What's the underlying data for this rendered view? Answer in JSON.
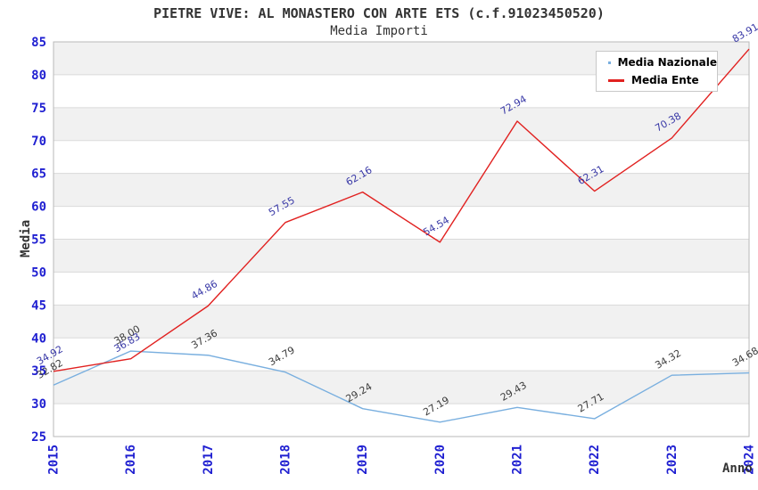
{
  "chart_data": {
    "type": "line",
    "title": "PIETRE VIVE: AL MONASTERO CON ARTE ETS (c.f.91023450520)",
    "subtitle": "Media Importi",
    "xlabel": "Anno",
    "ylabel": "Media",
    "x": [
      "2015",
      "2016",
      "2017",
      "2018",
      "2019",
      "2020",
      "2021",
      "2022",
      "2023",
      "2024"
    ],
    "ylim": [
      25,
      85
    ],
    "ytick_step": 5,
    "grid": true,
    "legend_position": "top-right",
    "band_colors": [
      "#f1f1f1",
      "#ffffff"
    ],
    "gridline_color": "#dadada",
    "plot_border_color": "#b9b9b9",
    "axis_tick_color": "#1f1fd1",
    "series": [
      {
        "name": "Media Nazionale",
        "color": "#79afdf",
        "label_color": "#3c3c3c",
        "values": [
          32.82,
          38.0,
          37.36,
          34.79,
          29.24,
          27.19,
          29.43,
          27.71,
          34.32,
          34.68
        ]
      },
      {
        "name": "Media Ente",
        "color": "#e12120",
        "label_color": "#3737a6",
        "values": [
          34.92,
          36.83,
          44.86,
          57.55,
          62.16,
          54.54,
          72.94,
          62.31,
          70.38,
          83.91
        ]
      }
    ]
  }
}
